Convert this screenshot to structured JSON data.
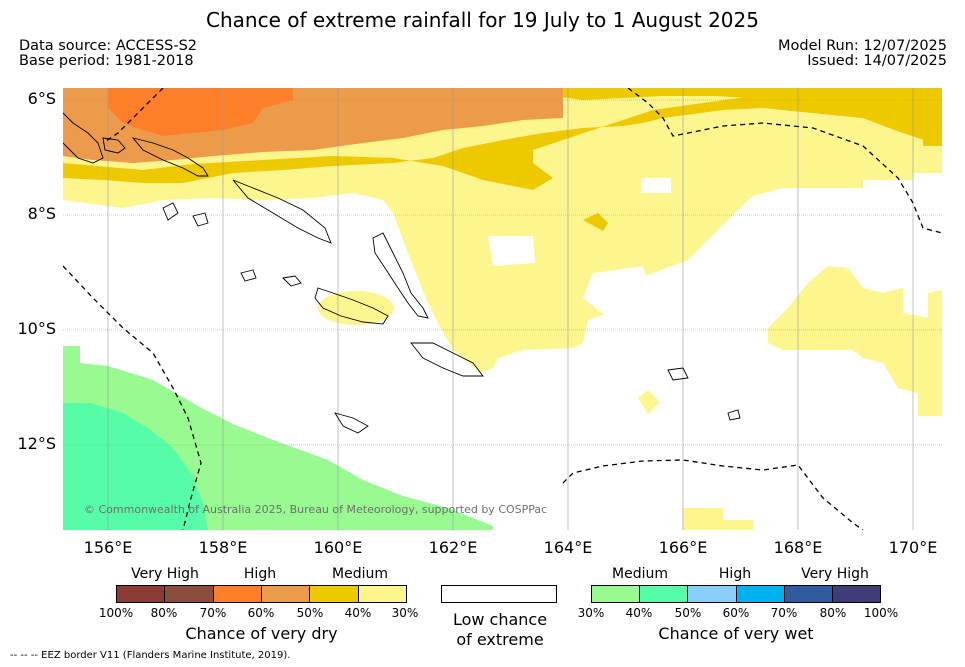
{
  "title": "Chance of extreme rainfall for 19 July to 1 August 2025",
  "data_source": "Data source: ACCESS-S2",
  "base_period": "Base period: 1981-2018",
  "model_run": "Model Run: 12/07/2025",
  "issued": "Issued: 14/07/2025",
  "lat_labels": [
    "6°S",
    "8°S",
    "10°S",
    "12°S"
  ],
  "lon_labels": [
    "156°E",
    "158°E",
    "160°E",
    "162°E",
    "164°E",
    "166°E",
    "168°E",
    "170°E"
  ],
  "copyright": "© Commonwealth of Australia 2025, Bureau of Meteorology, supported by COSPPac",
  "legend_dry": {
    "categories": [
      "Very High",
      "High",
      "Medium"
    ],
    "ticks": [
      "100%",
      "80%",
      "70%",
      "60%",
      "50%",
      "40%",
      "30%"
    ],
    "title": "Chance of very dry",
    "colors": [
      "#8b3a34",
      "#8c4d3c",
      "#fd7f2a",
      "#eb9b4a",
      "#eec900",
      "#fdf58e"
    ]
  },
  "legend_low": {
    "title_line1": "Low chance",
    "title_line2": "of extreme",
    "color": "#ffffff"
  },
  "legend_wet": {
    "categories": [
      "Medium",
      "High",
      "Very High"
    ],
    "ticks": [
      "30%",
      "40%",
      "50%",
      "60%",
      "70%",
      "80%",
      "100%"
    ],
    "title": "Chance of very wet",
    "colors": [
      "#98fa91",
      "#56fca7",
      "#87cefa",
      "#00b0ef",
      "#325a9f",
      "#3f3c7a"
    ]
  },
  "footnote": "--  --  -- EEZ border V11 (Flanders Marine Institute, 2019)."
}
